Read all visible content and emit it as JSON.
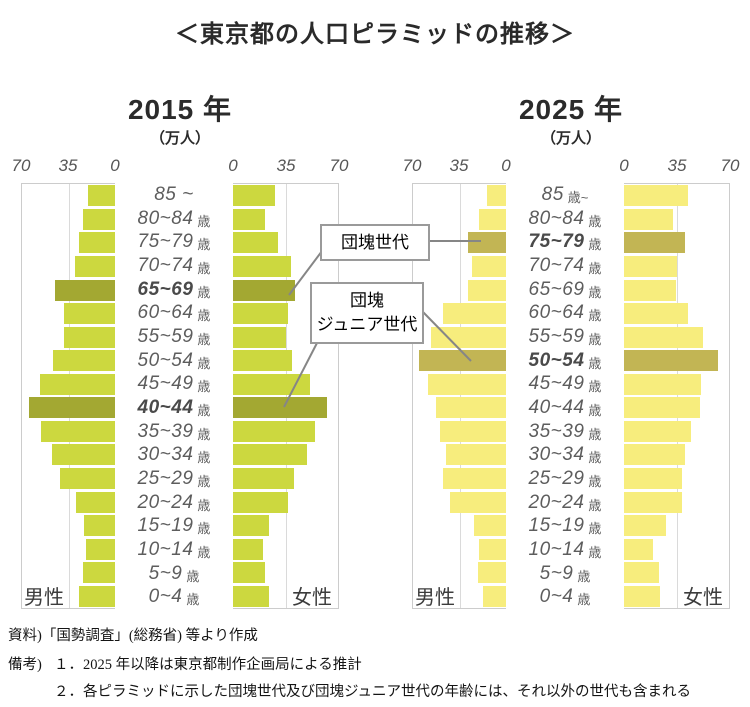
{
  "page": {
    "title": "＜東京都の人口ピラミッドの推移＞"
  },
  "annotations": {
    "dankai_label": "団塊世代",
    "dankai_junior_line1": "団塊",
    "dankai_junior_line2": "ジュニア世代",
    "leader_line_color": "#868686",
    "box_border_color": "#9a9a9a"
  },
  "footer": {
    "source": "資料)「国勢調査」(総務省) 等より作成",
    "notes_label": "備考)",
    "notes": [
      "１．2025 年以降は東京都制作企画局による推計",
      "２．各ピラミッドに示した団塊世代及び団塊ジュニア世代の年齢には、それ以外の世代も含まれる"
    ]
  },
  "chart_data": [
    {
      "type": "bar",
      "orientation": "population-pyramid",
      "title": "2015 年",
      "unit_label": "（万人）",
      "unit": "万人",
      "xlim": [
        0,
        70
      ],
      "xticks": [
        0,
        35,
        70
      ],
      "ticks_left": [
        "70",
        "35",
        "0"
      ],
      "ticks_right": [
        "0",
        "35",
        "70"
      ],
      "grid": true,
      "categories": [
        {
          "label": "85 ~",
          "suffix": "",
          "bold": false
        },
        {
          "label": "80~84",
          "suffix": "歳",
          "bold": false
        },
        {
          "label": "75~79",
          "suffix": "歳",
          "bold": false
        },
        {
          "label": "70~74",
          "suffix": "歳",
          "bold": false
        },
        {
          "label": "65~69",
          "suffix": "歳",
          "bold": true
        },
        {
          "label": "60~64",
          "suffix": "歳",
          "bold": false
        },
        {
          "label": "55~59",
          "suffix": "歳",
          "bold": false
        },
        {
          "label": "50~54",
          "suffix": "歳",
          "bold": false
        },
        {
          "label": "45~49",
          "suffix": "歳",
          "bold": false
        },
        {
          "label": "40~44",
          "suffix": "歳",
          "bold": true
        },
        {
          "label": "35~39",
          "suffix": "歳",
          "bold": false
        },
        {
          "label": "30~34",
          "suffix": "歳",
          "bold": false
        },
        {
          "label": "25~29",
          "suffix": "歳",
          "bold": false
        },
        {
          "label": "20~24",
          "suffix": "歳",
          "bold": false
        },
        {
          "label": "15~19",
          "suffix": "歳",
          "bold": false
        },
        {
          "label": "10~14",
          "suffix": "歳",
          "bold": false
        },
        {
          "label": "5~9",
          "suffix": "歳",
          "bold": false
        },
        {
          "label": "0~4",
          "suffix": "歳",
          "bold": false
        }
      ],
      "series": [
        {
          "name": "男性",
          "side": "left",
          "values": [
            20,
            24,
            27,
            30,
            45,
            38,
            38,
            46,
            56,
            64,
            55,
            47,
            41,
            29,
            23,
            22,
            24,
            27
          ]
        },
        {
          "name": "女性",
          "side": "right",
          "values": [
            28,
            21,
            30,
            38,
            41,
            36,
            35,
            39,
            51,
            62,
            54,
            49,
            40,
            36,
            24,
            20,
            21,
            24
          ]
        }
      ],
      "highlight_indices": [
        4,
        9
      ],
      "highlight_meaning": [
        "団塊世代",
        "団塊ジュニア世代"
      ],
      "colors": {
        "bar": "#ccd83f",
        "highlight": "#a3a832"
      }
    },
    {
      "type": "bar",
      "orientation": "population-pyramid",
      "title": "2025 年",
      "unit_label": "（万人）",
      "unit": "万人",
      "xlim": [
        0,
        70
      ],
      "xticks": [
        0,
        35,
        70
      ],
      "ticks_left": [
        "70",
        "35",
        "0"
      ],
      "ticks_right": [
        "0",
        "35",
        "70"
      ],
      "grid": true,
      "categories": [
        {
          "label": "85",
          "suffix": "歳~",
          "bold": false
        },
        {
          "label": "80~84",
          "suffix": "歳",
          "bold": false
        },
        {
          "label": "75~79",
          "suffix": "歳",
          "bold": true
        },
        {
          "label": "70~74",
          "suffix": "歳",
          "bold": false
        },
        {
          "label": "65~69",
          "suffix": "歳",
          "bold": false
        },
        {
          "label": "60~64",
          "suffix": "歳",
          "bold": false
        },
        {
          "label": "55~59",
          "suffix": "歳",
          "bold": false
        },
        {
          "label": "50~54",
          "suffix": "歳",
          "bold": true
        },
        {
          "label": "45~49",
          "suffix": "歳",
          "bold": false
        },
        {
          "label": "40~44",
          "suffix": "歳",
          "bold": false
        },
        {
          "label": "35~39",
          "suffix": "歳",
          "bold": false
        },
        {
          "label": "30~34",
          "suffix": "歳",
          "bold": false
        },
        {
          "label": "25~29",
          "suffix": "歳",
          "bold": false
        },
        {
          "label": "20~24",
          "suffix": "歳",
          "bold": false
        },
        {
          "label": "15~19",
          "suffix": "歳",
          "bold": false
        },
        {
          "label": "10~14",
          "suffix": "歳",
          "bold": false
        },
        {
          "label": "5~9",
          "suffix": "歳",
          "bold": false
        },
        {
          "label": "0~4",
          "suffix": "歳",
          "bold": false
        }
      ],
      "series": [
        {
          "name": "男性",
          "side": "left",
          "values": [
            14,
            20,
            28,
            25,
            28,
            47,
            56,
            65,
            58,
            52,
            49,
            45,
            47,
            42,
            24,
            20,
            21,
            17
          ]
        },
        {
          "name": "女性",
          "side": "right",
          "values": [
            42,
            32,
            40,
            35,
            34,
            42,
            52,
            62,
            51,
            50,
            44,
            40,
            38,
            38,
            28,
            19,
            23,
            24
          ]
        }
      ],
      "highlight_indices": [
        2,
        7
      ],
      "highlight_meaning": [
        "団塊世代",
        "団塊ジュニア世代"
      ],
      "colors": {
        "bar": "#f7ed7d",
        "highlight": "#c2b554"
      }
    }
  ]
}
